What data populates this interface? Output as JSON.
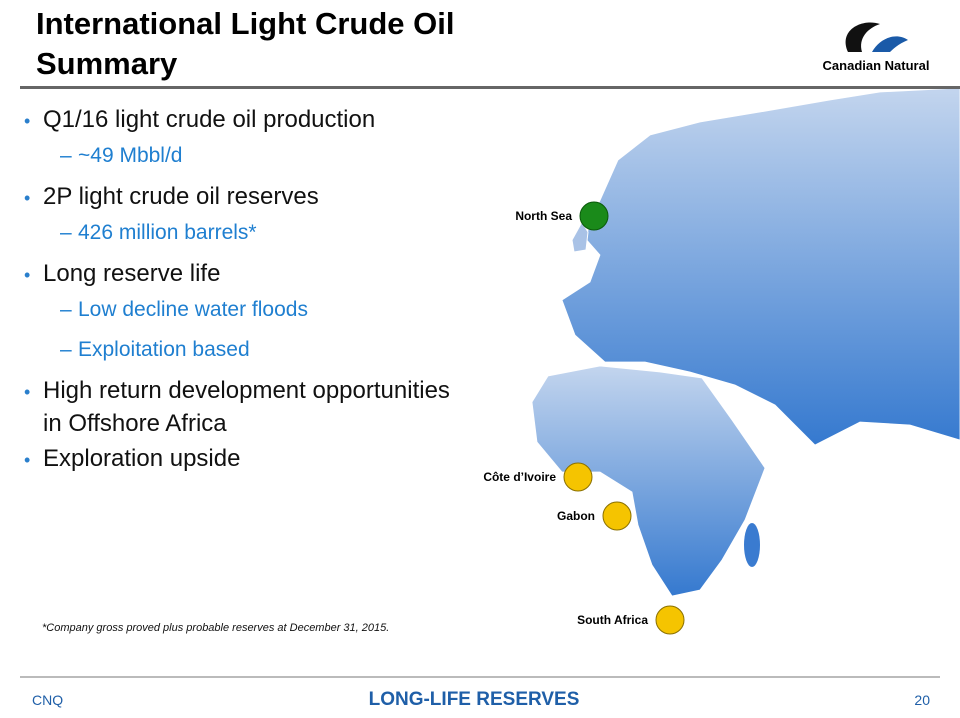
{
  "header": {
    "title": "International Light Crude Oil Summary",
    "logo_text": "Canadian Natural"
  },
  "bullets": [
    {
      "text": "Q1/16 light crude oil production",
      "sub": [
        "~49 Mbbl/d"
      ]
    },
    {
      "text": "2P light crude oil reserves",
      "sub": [
        "426 million barrels*"
      ]
    },
    {
      "text": "Long reserve life",
      "sub": [
        "Low decline water floods",
        "Exploitation based"
      ]
    },
    {
      "text": "High return development opportunities in Offshore Africa",
      "sub": []
    },
    {
      "text": "Exploration upside",
      "sub": []
    }
  ],
  "footnote": "*Company gross proved plus probable reserves at December 31, 2015.",
  "map": {
    "locations": [
      {
        "label": "North Sea"
      },
      {
        "label": "Côte d’Ivoire"
      },
      {
        "label": "Gabon"
      },
      {
        "label": "South Africa"
      }
    ]
  },
  "footer": {
    "left": "CNQ",
    "center": "LONG-LIFE RESERVES",
    "page": "20"
  }
}
